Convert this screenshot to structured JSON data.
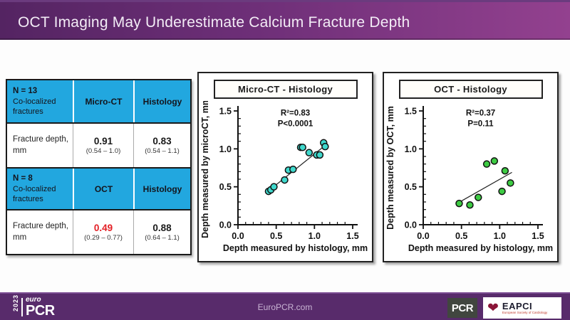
{
  "header": {
    "title": "OCT Imaging May Underestimate Calcium Fracture Depth"
  },
  "colors": {
    "header_gradient_left": "#542462",
    "header_gradient_right": "#93418F",
    "footer_purple": "#582B6B",
    "table_header_bg": "#22A7DF",
    "microct_marker": "#3FD8CC",
    "oct_marker": "#3DCB43",
    "highlight_red": "#E31E24",
    "value_black": "#1A1A1A"
  },
  "table": {
    "sections": [
      {
        "header": {
          "n_label": "N = 13",
          "sub_label": "Co-localized fractures",
          "col2": "Micro-CT",
          "col3": "Histology"
        },
        "row": {
          "label": "Fracture depth, mm",
          "col2_value": "0.91",
          "col2_range": "(0.54 – 1.0)",
          "col2_color": "#1A1A1A",
          "col3_value": "0.83",
          "col3_range": "(0.54 – 1.1)",
          "col3_color": "#1A1A1A"
        }
      },
      {
        "header": {
          "n_label": "N = 8",
          "sub_label": "Co-localized fractures",
          "col2": "OCT",
          "col3": "Histology"
        },
        "row": {
          "label": "Fracture depth, mm",
          "col2_value": "0.49",
          "col2_range": "(0.29 – 0.77)",
          "col2_color": "#E31E24",
          "col3_value": "0.88",
          "col3_range": "(0.64 – 1.1)",
          "col3_color": "#1A1A1A"
        }
      }
    ]
  },
  "chart_data": [
    {
      "type": "scatter",
      "title": "Micro-CT -  Histology",
      "xlabel": "Depth measured by histology, mm",
      "ylabel": "Depth measured by microCT, mm",
      "xlim": [
        0,
        1.5
      ],
      "ylim": [
        0,
        1.5
      ],
      "xticks": [
        0.0,
        0.5,
        1.0,
        1.5
      ],
      "yticks": [
        0.0,
        0.5,
        1.0,
        1.5
      ],
      "minor_tick_step": 0.1,
      "annotation": [
        "R²=0.83",
        "P<0.0001"
      ],
      "annotation_xy": [
        0.75,
        1.44
      ],
      "marker_color": "#3FD8CC",
      "points": [
        [
          0.4,
          0.44
        ],
        [
          0.43,
          0.46
        ],
        [
          0.47,
          0.5
        ],
        [
          0.61,
          0.59
        ],
        [
          0.66,
          0.72
        ],
        [
          0.72,
          0.73
        ],
        [
          0.82,
          1.02
        ],
        [
          0.845,
          1.02
        ],
        [
          0.93,
          0.95
        ],
        [
          1.03,
          0.92
        ],
        [
          1.07,
          0.92
        ],
        [
          1.12,
          1.08
        ],
        [
          1.14,
          1.03
        ]
      ],
      "regression_line": {
        "x1": 0.38,
        "y1": 0.43,
        "x2": 1.17,
        "y2": 1.07
      }
    },
    {
      "type": "scatter",
      "title": "OCT -  Histology",
      "xlabel": "Depth measured by histology, mm",
      "ylabel": "Depth measured by OCT, mm",
      "xlim": [
        0,
        1.5
      ],
      "ylim": [
        0,
        1.5
      ],
      "xticks": [
        0.0,
        0.5,
        1.0,
        1.5
      ],
      "yticks": [
        0.0,
        0.5,
        1.0,
        1.5
      ],
      "minor_tick_step": 0.1,
      "annotation": [
        "R²=0.37",
        "P=0.11"
      ],
      "annotation_xy": [
        0.75,
        1.44
      ],
      "marker_color": "#3DCB43",
      "points": [
        [
          0.47,
          0.28
        ],
        [
          0.61,
          0.26
        ],
        [
          0.72,
          0.36
        ],
        [
          0.83,
          0.8
        ],
        [
          0.93,
          0.84
        ],
        [
          1.03,
          0.44
        ],
        [
          1.07,
          0.71
        ],
        [
          1.14,
          0.55
        ]
      ],
      "regression_line": {
        "x1": 0.46,
        "y1": 0.29,
        "x2": 1.16,
        "y2": 0.69
      }
    }
  ],
  "footer": {
    "site": "EuroPCR.com",
    "logo": {
      "year": "2023",
      "euro": "euro",
      "pcr": "PCR"
    },
    "pcr_badge": "PCR",
    "eapci": {
      "name": "EAPCI",
      "tagline": "European Society of Cardiology"
    }
  }
}
